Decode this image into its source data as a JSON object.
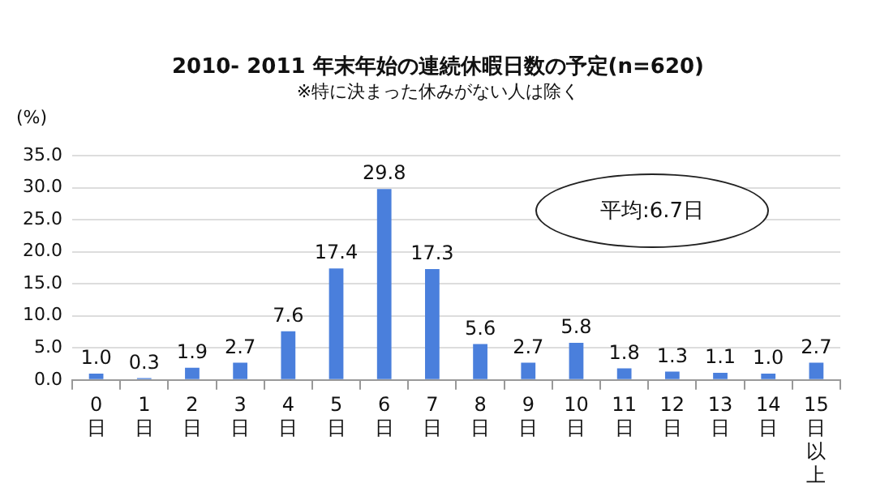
{
  "chart_data": {
    "type": "bar",
    "title": "2010- 2011 年末年始の連続休暇日数の予定(n=620)",
    "subtitle": "※特に決まった休みがない人は除く",
    "ylabel": "(%)",
    "annotations": [
      "平均:6.7日"
    ],
    "categories": [
      "0日",
      "1日",
      "2日",
      "3日",
      "4日",
      "5日",
      "6日",
      "7日",
      "8日",
      "9日",
      "10日",
      "11日",
      "12日",
      "13日",
      "14日",
      "15日以上"
    ],
    "values": [
      1.0,
      0.3,
      1.9,
      2.7,
      7.6,
      17.4,
      29.8,
      17.3,
      5.6,
      2.7,
      5.8,
      1.8,
      1.3,
      1.1,
      1.0,
      2.7
    ],
    "value_labels": [
      "1.0",
      "0.3",
      "1.9",
      "2.7",
      "7.6",
      "17.4",
      "29.8",
      "17.3",
      "5.6",
      "2.7",
      "5.8",
      "1.8",
      "1.3",
      "1.1",
      "1.0",
      "2.7"
    ],
    "color": "#4a7fdc",
    "ylim": [
      0,
      35
    ],
    "yticks": [
      {
        "value": 0,
        "label": "0.0"
      },
      {
        "value": 5,
        "label": "5.0"
      },
      {
        "value": 10,
        "label": "10.0"
      },
      {
        "value": 15,
        "label": "15.0"
      },
      {
        "value": 20,
        "label": "20.0"
      },
      {
        "value": 25,
        "label": "25.0"
      },
      {
        "value": 30,
        "label": "30.0"
      },
      {
        "value": 35,
        "label": "35.0"
      }
    ],
    "grid": "y"
  }
}
